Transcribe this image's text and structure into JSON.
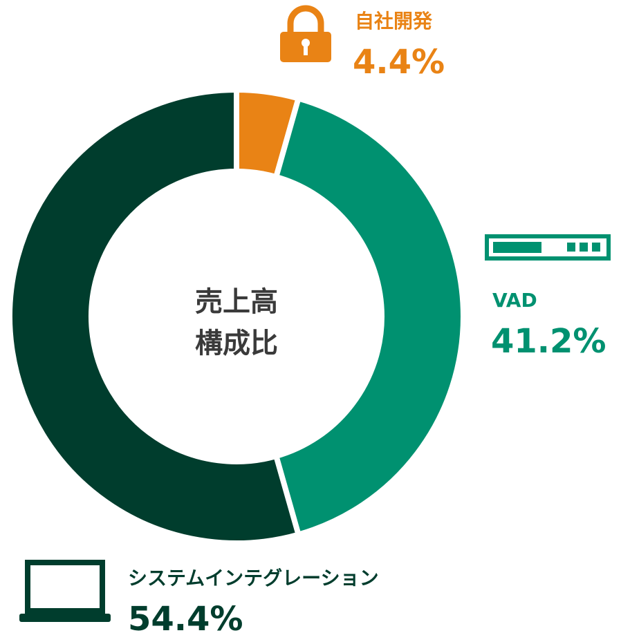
{
  "chart_data": {
    "type": "donut",
    "center_text": [
      "売上高",
      "構成比"
    ],
    "categories": [
      "自社開発",
      "VAD",
      "システムインテグレーション"
    ],
    "values": [
      4.4,
      41.2,
      54.4
    ],
    "value_labels": [
      "4.4%",
      "41.2%",
      "54.4%"
    ],
    "colors": [
      "#e98315",
      "#009170",
      "#003d2d"
    ]
  }
}
